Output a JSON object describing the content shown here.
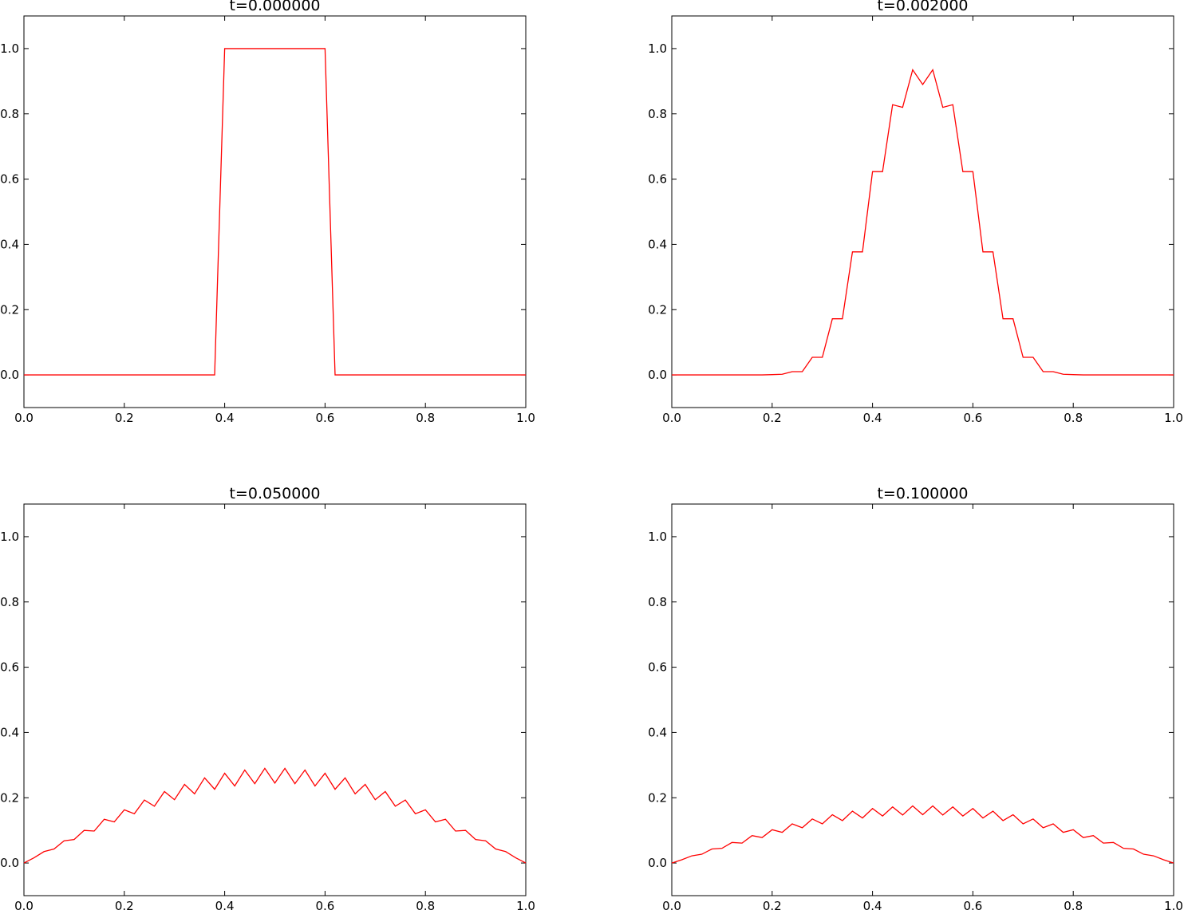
{
  "figure": {
    "background": "#ffffff",
    "line_color": "#ff0000"
  },
  "chart_data": [
    {
      "type": "line",
      "title": "t=0.000000",
      "xlabel": "",
      "ylabel": "",
      "xlim": [
        0.0,
        1.0
      ],
      "ylim": [
        -0.1,
        1.1
      ],
      "xticks": [
        "0.0",
        "0.2",
        "0.4",
        "0.6",
        "0.8",
        "1.0"
      ],
      "yticks": [
        "0.0",
        "0.2",
        "0.4",
        "0.6",
        "0.8",
        "1.0"
      ],
      "grid": false,
      "legend": "none",
      "series": [
        {
          "color": "#ff0000",
          "x": [
            0.0,
            0.02,
            0.04,
            0.06,
            0.08,
            0.1,
            0.12,
            0.14,
            0.16,
            0.18,
            0.2,
            0.22,
            0.24,
            0.26,
            0.28,
            0.3,
            0.32,
            0.34,
            0.36,
            0.38,
            0.4,
            0.42,
            0.44,
            0.46,
            0.48,
            0.5,
            0.52,
            0.54,
            0.56,
            0.58,
            0.6,
            0.62,
            0.64,
            0.66,
            0.68,
            0.7,
            0.72,
            0.74,
            0.76,
            0.78,
            0.8,
            0.82,
            0.84,
            0.86,
            0.88,
            0.9,
            0.92,
            0.94,
            0.96,
            0.98,
            1.0
          ],
          "y": [
            0.0,
            0.0,
            0.0,
            0.0,
            0.0,
            0.0,
            0.0,
            0.0,
            0.0,
            0.0,
            0.0,
            0.0,
            0.0,
            0.0,
            0.0,
            0.0,
            0.0,
            0.0,
            0.0,
            0.0,
            1.0,
            1.0,
            1.0,
            1.0,
            1.0,
            1.0,
            1.0,
            1.0,
            1.0,
            1.0,
            1.0,
            0.0,
            0.0,
            0.0,
            0.0,
            0.0,
            0.0,
            0.0,
            0.0,
            0.0,
            0.0,
            0.0,
            0.0,
            0.0,
            0.0,
            0.0,
            0.0,
            0.0,
            0.0,
            0.0,
            0.0
          ]
        }
      ]
    },
    {
      "type": "line",
      "title": "t=0.002000",
      "xlabel": "",
      "ylabel": "",
      "xlim": [
        0.0,
        1.0
      ],
      "ylim": [
        -0.1,
        1.1
      ],
      "xticks": [
        "0.0",
        "0.2",
        "0.4",
        "0.6",
        "0.8",
        "1.0"
      ],
      "yticks": [
        "0.0",
        "0.2",
        "0.4",
        "0.6",
        "0.8",
        "1.0"
      ],
      "grid": false,
      "legend": "none",
      "series": [
        {
          "color": "#ff0000",
          "x": [
            0.0,
            0.02,
            0.04,
            0.06,
            0.08,
            0.1,
            0.12,
            0.14,
            0.16,
            0.18,
            0.2,
            0.22,
            0.24,
            0.26,
            0.28,
            0.3,
            0.32,
            0.34,
            0.36,
            0.38,
            0.4,
            0.42,
            0.44,
            0.46,
            0.48,
            0.5,
            0.52,
            0.54,
            0.56,
            0.58,
            0.6,
            0.62,
            0.64,
            0.66,
            0.68,
            0.7,
            0.72,
            0.74,
            0.76,
            0.78,
            0.8,
            0.82,
            0.84,
            0.86,
            0.88,
            0.9,
            0.92,
            0.94,
            0.96,
            0.98,
            1.0
          ],
          "y": [
            0.0,
            0.0,
            0.0,
            0.0,
            0.0,
            0.0,
            0.0,
            0.0,
            0.0,
            0.0,
            0.001,
            0.002,
            0.01,
            0.01,
            0.054,
            0.054,
            0.172,
            0.172,
            0.377,
            0.377,
            0.623,
            0.623,
            0.828,
            0.82,
            0.935,
            0.89,
            0.935,
            0.82,
            0.828,
            0.623,
            0.623,
            0.377,
            0.377,
            0.172,
            0.172,
            0.054,
            0.054,
            0.01,
            0.01,
            0.002,
            0.001,
            0.0,
            0.0,
            0.0,
            0.0,
            0.0,
            0.0,
            0.0,
            0.0,
            0.0,
            0.0
          ]
        }
      ]
    },
    {
      "type": "line",
      "title": "t=0.050000",
      "xlabel": "",
      "ylabel": "",
      "xlim": [
        0.0,
        1.0
      ],
      "ylim": [
        -0.1,
        1.1
      ],
      "xticks": [
        "0.0",
        "0.2",
        "0.4",
        "0.6",
        "0.8",
        "1.0"
      ],
      "yticks": [
        "0.0",
        "0.2",
        "0.4",
        "0.6",
        "0.8",
        "1.0"
      ],
      "grid": false,
      "legend": "none",
      "series": [
        {
          "color": "#ff0000",
          "x": [
            0.0,
            0.02,
            0.04,
            0.06,
            0.08,
            0.1,
            0.12,
            0.14,
            0.16,
            0.18,
            0.2,
            0.22,
            0.24,
            0.26,
            0.28,
            0.3,
            0.32,
            0.34,
            0.36,
            0.38,
            0.4,
            0.42,
            0.44,
            0.46,
            0.48,
            0.5,
            0.52,
            0.54,
            0.56,
            0.58,
            0.6,
            0.62,
            0.64,
            0.66,
            0.68,
            0.7,
            0.72,
            0.74,
            0.76,
            0.78,
            0.8,
            0.82,
            0.84,
            0.86,
            0.88,
            0.9,
            0.92,
            0.94,
            0.96,
            0.98,
            1.0
          ],
          "y": [
            0.0,
            0.016,
            0.035,
            0.043,
            0.068,
            0.072,
            0.1,
            0.098,
            0.134,
            0.126,
            0.163,
            0.151,
            0.193,
            0.174,
            0.219,
            0.194,
            0.241,
            0.212,
            0.261,
            0.226,
            0.275,
            0.236,
            0.285,
            0.243,
            0.29,
            0.245,
            0.29,
            0.243,
            0.285,
            0.236,
            0.275,
            0.226,
            0.261,
            0.212,
            0.241,
            0.194,
            0.219,
            0.174,
            0.193,
            0.151,
            0.163,
            0.126,
            0.134,
            0.098,
            0.1,
            0.072,
            0.068,
            0.043,
            0.035,
            0.016,
            0.0
          ]
        }
      ]
    },
    {
      "type": "line",
      "title": "t=0.100000",
      "xlabel": "",
      "ylabel": "",
      "xlim": [
        0.0,
        1.0
      ],
      "ylim": [
        -0.1,
        1.1
      ],
      "xticks": [
        "0.0",
        "0.2",
        "0.4",
        "0.6",
        "0.8",
        "1.0"
      ],
      "yticks": [
        "0.0",
        "0.2",
        "0.4",
        "0.6",
        "0.8",
        "1.0"
      ],
      "grid": false,
      "legend": "none",
      "series": [
        {
          "color": "#ff0000",
          "x": [
            0.0,
            0.02,
            0.04,
            0.06,
            0.08,
            0.1,
            0.12,
            0.14,
            0.16,
            0.18,
            0.2,
            0.22,
            0.24,
            0.26,
            0.28,
            0.3,
            0.32,
            0.34,
            0.36,
            0.38,
            0.4,
            0.42,
            0.44,
            0.46,
            0.48,
            0.5,
            0.52,
            0.54,
            0.56,
            0.58,
            0.6,
            0.62,
            0.64,
            0.66,
            0.68,
            0.7,
            0.72,
            0.74,
            0.76,
            0.78,
            0.8,
            0.82,
            0.84,
            0.86,
            0.88,
            0.9,
            0.92,
            0.94,
            0.96,
            0.98,
            1.0
          ],
          "y": [
            0.0,
            0.01,
            0.022,
            0.027,
            0.043,
            0.045,
            0.063,
            0.061,
            0.084,
            0.078,
            0.102,
            0.094,
            0.12,
            0.108,
            0.135,
            0.12,
            0.148,
            0.13,
            0.159,
            0.138,
            0.167,
            0.144,
            0.172,
            0.147,
            0.175,
            0.148,
            0.175,
            0.147,
            0.172,
            0.144,
            0.167,
            0.138,
            0.159,
            0.13,
            0.148,
            0.12,
            0.135,
            0.108,
            0.12,
            0.094,
            0.102,
            0.078,
            0.084,
            0.061,
            0.063,
            0.045,
            0.043,
            0.027,
            0.022,
            0.01,
            0.0
          ]
        }
      ]
    }
  ]
}
